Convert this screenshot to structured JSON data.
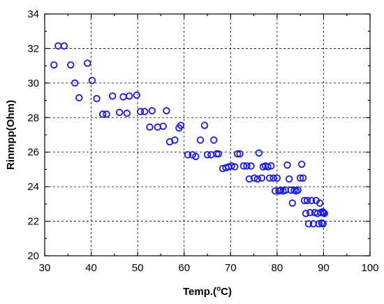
{
  "chart_data": {
    "type": "scatter",
    "xlabel_prefix": "Temp.(",
    "xlabel_sup": "o",
    "xlabel_suffix": "C)",
    "ylabel": "Rinmpp(Ohm)",
    "xlim": [
      30,
      100
    ],
    "ylim": [
      20,
      34
    ],
    "xticks": [
      30,
      40,
      50,
      60,
      70,
      80,
      90,
      100
    ],
    "yticks": [
      20,
      22,
      24,
      26,
      28,
      30,
      32,
      34
    ],
    "grid": true,
    "marker_color": "#1a1adb",
    "points": [
      [
        32.0,
        31.05
      ],
      [
        32.9,
        32.15
      ],
      [
        34.2,
        32.15
      ],
      [
        35.6,
        31.05
      ],
      [
        36.5,
        30.0
      ],
      [
        37.4,
        29.15
      ],
      [
        39.2,
        31.15
      ],
      [
        40.2,
        30.15
      ],
      [
        41.2,
        29.1
      ],
      [
        42.5,
        28.2
      ],
      [
        43.3,
        28.2
      ],
      [
        44.6,
        29.25
      ],
      [
        46.1,
        28.3
      ],
      [
        46.9,
        29.2
      ],
      [
        47.7,
        28.25
      ],
      [
        48.2,
        29.25
      ],
      [
        49.8,
        29.3
      ],
      [
        50.6,
        28.35
      ],
      [
        51.5,
        28.35
      ],
      [
        52.6,
        27.45
      ],
      [
        53.1,
        28.4
      ],
      [
        54.3,
        27.45
      ],
      [
        55.5,
        27.5
      ],
      [
        56.2,
        28.4
      ],
      [
        56.9,
        26.6
      ],
      [
        58.0,
        26.7
      ],
      [
        58.9,
        27.4
      ],
      [
        59.3,
        27.55
      ],
      [
        60.8,
        25.85
      ],
      [
        61.8,
        25.85
      ],
      [
        62.5,
        25.75
      ],
      [
        63.5,
        26.7
      ],
      [
        64.4,
        27.55
      ],
      [
        65.0,
        25.85
      ],
      [
        65.8,
        25.85
      ],
      [
        66.4,
        26.7
      ],
      [
        67.0,
        25.9
      ],
      [
        67.4,
        25.9
      ],
      [
        68.3,
        25.05
      ],
      [
        69.0,
        25.1
      ],
      [
        69.6,
        25.15
      ],
      [
        70.2,
        25.2
      ],
      [
        70.9,
        25.15
      ],
      [
        71.5,
        25.9
      ],
      [
        72.0,
        25.9
      ],
      [
        72.8,
        25.2
      ],
      [
        73.5,
        25.2
      ],
      [
        74.0,
        24.45
      ],
      [
        74.4,
        25.2
      ],
      [
        75.1,
        24.5
      ],
      [
        75.8,
        24.45
      ],
      [
        76.1,
        25.95
      ],
      [
        76.7,
        24.5
      ],
      [
        77.0,
        25.15
      ],
      [
        77.5,
        25.2
      ],
      [
        78.0,
        25.15
      ],
      [
        78.4,
        24.5
      ],
      [
        78.7,
        25.2
      ],
      [
        79.2,
        24.5
      ],
      [
        79.6,
        23.75
      ],
      [
        80.0,
        24.5
      ],
      [
        80.4,
        23.75
      ],
      [
        80.8,
        23.8
      ],
      [
        81.3,
        23.75
      ],
      [
        81.8,
        23.8
      ],
      [
        82.2,
        25.25
      ],
      [
        82.6,
        24.45
      ],
      [
        83.0,
        23.8
      ],
      [
        83.3,
        23.05
      ],
      [
        83.7,
        23.8
      ],
      [
        84.1,
        23.75
      ],
      [
        84.5,
        23.8
      ],
      [
        85.0,
        24.5
      ],
      [
        85.3,
        25.3
      ],
      [
        85.6,
        24.5
      ],
      [
        85.9,
        23.2
      ],
      [
        86.2,
        22.45
      ],
      [
        86.5,
        23.2
      ],
      [
        86.8,
        21.85
      ],
      [
        87.1,
        22.5
      ],
      [
        87.4,
        23.2
      ],
      [
        87.8,
        21.85
      ],
      [
        88.1,
        22.5
      ],
      [
        88.4,
        23.2
      ],
      [
        88.7,
        22.45
      ],
      [
        89.0,
        21.85
      ],
      [
        89.2,
        23.05
      ],
      [
        89.4,
        22.5
      ],
      [
        89.6,
        21.9
      ],
      [
        89.8,
        22.55
      ],
      [
        90.0,
        22.5
      ],
      [
        90.2,
        22.45
      ],
      [
        89.9,
        21.85
      ]
    ]
  }
}
